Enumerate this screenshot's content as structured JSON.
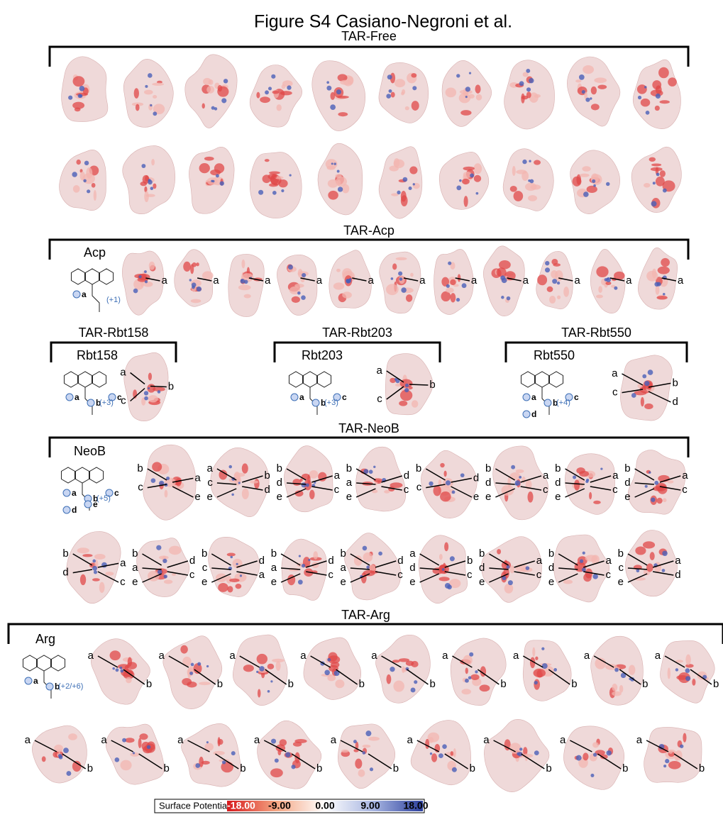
{
  "title": "Figure S4 Casiano-Negroni et al.",
  "panels": [
    {
      "title": "TAR-Free",
      "rows": [
        [
          [],
          [],
          [],
          [],
          [],
          [],
          [],
          [],
          [],
          []
        ],
        [
          [],
          [],
          [],
          [],
          [],
          [],
          [],
          [],
          [],
          []
        ]
      ]
    },
    {
      "title": "TAR-Acp",
      "ligand": {
        "name": "Acp",
        "charge": "(+1)",
        "sites": [
          "a"
        ]
      },
      "rows": [
        [
          [
            "a"
          ],
          [
            "a"
          ],
          [
            "a"
          ],
          [
            "a"
          ],
          [
            "a"
          ],
          [
            "a"
          ],
          [
            "a"
          ],
          [
            "a"
          ],
          [
            "a"
          ],
          [
            "a"
          ],
          [
            "a"
          ]
        ]
      ]
    },
    {
      "title": "TAR-Rbt158",
      "ligand": {
        "name": "Rbt158",
        "charge": "(+3)",
        "sites": [
          "a",
          "b",
          "c"
        ]
      },
      "rows": [
        [
          [
            "a",
            "b",
            "c"
          ]
        ]
      ]
    },
    {
      "title": "TAR-Rbt203",
      "ligand": {
        "name": "Rbt203",
        "charge": "(+3)",
        "sites": [
          "a",
          "b",
          "c"
        ]
      },
      "rows": [
        [
          [
            "a",
            "b",
            "c"
          ]
        ]
      ]
    },
    {
      "title": "TAR-Rbt550",
      "ligand": {
        "name": "Rbt550",
        "charge": "(+4)",
        "sites": [
          "a",
          "b",
          "c",
          "d"
        ]
      },
      "rows": [
        [
          [
            "a",
            "b",
            "c",
            "d"
          ]
        ]
      ]
    },
    {
      "title": "TAR-NeoB",
      "ligand": {
        "name": "NeoB",
        "charge": "(+5)",
        "sites": [
          "a",
          "b",
          "c",
          "d",
          "e"
        ]
      },
      "rows": [
        [
          [
            "b",
            "a",
            "c",
            "e"
          ],
          [
            "a",
            "b",
            "c",
            "d",
            "e"
          ],
          [
            "b",
            "a",
            "d",
            "c",
            "e"
          ],
          [
            "b",
            "d",
            "a",
            "c",
            "e"
          ],
          [
            "b",
            "d",
            "c",
            "e"
          ],
          [
            "b",
            "a",
            "d",
            "c",
            "e"
          ],
          [
            "b",
            "a",
            "d",
            "c",
            "e"
          ],
          [
            "b",
            "a",
            "d",
            "c",
            "e"
          ]
        ],
        [
          [
            "b",
            "a",
            "d",
            "c"
          ],
          [
            "b",
            "d",
            "a",
            "c",
            "e"
          ],
          [
            "b",
            "d",
            "c",
            "a",
            "e"
          ],
          [
            "b",
            "d",
            "a",
            "c",
            "e"
          ],
          [
            "b",
            "d",
            "a",
            "c",
            "e"
          ],
          [
            "a",
            "b",
            "d",
            "c",
            "e"
          ],
          [
            "b",
            "a",
            "d",
            "c",
            "e"
          ],
          [
            "b",
            "a",
            "d",
            "c",
            "e"
          ],
          [
            "b",
            "a",
            "c",
            "d",
            "e"
          ]
        ]
      ]
    },
    {
      "title": "TAR-Arg",
      "ligand": {
        "name": "Arg",
        "charge": "(+2/+6)",
        "sites": [
          "a",
          "b"
        ]
      },
      "rows": [
        [
          [
            "a",
            "b"
          ],
          [
            "a",
            "b"
          ],
          [
            "a",
            "b"
          ],
          [
            "a",
            "b"
          ],
          [
            "a",
            "b"
          ],
          [
            "a",
            "b"
          ],
          [
            "a",
            "b"
          ],
          [
            "a",
            "b"
          ],
          [
            "a",
            "b"
          ]
        ],
        [
          [
            "a",
            "b"
          ],
          [
            "a",
            "b"
          ],
          [
            "a",
            "b"
          ],
          [
            "a",
            "b"
          ],
          [
            "a",
            "b"
          ],
          [
            "a",
            "b"
          ],
          [
            "a",
            "b"
          ],
          [
            "a",
            "b"
          ],
          [
            "a",
            "b"
          ]
        ]
      ]
    }
  ],
  "colorbar": {
    "label": "Surface Potential (kT/e)",
    "ticks": [
      "-18.00",
      "-9.00",
      "0.00",
      "9.00",
      "18.00"
    ]
  }
}
